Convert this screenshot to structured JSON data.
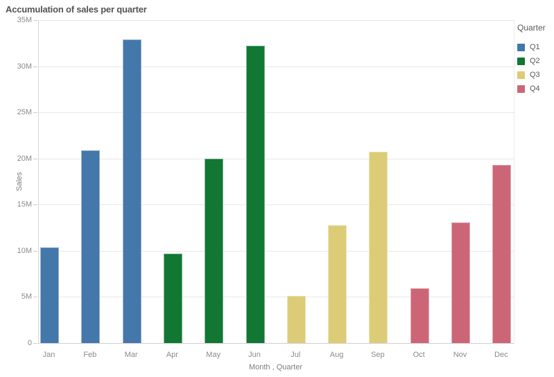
{
  "title": "Accumulation of sales per quarter",
  "colors": {
    "background": "#ffffff",
    "title_text": "#545454",
    "axis_tick_text": "#8a8a8a",
    "axis_title_text": "#7d7d7d",
    "gridline": "#e8e8e8",
    "axis_line": "#d6d6d6",
    "q1_blue": "#4477aa",
    "q2_green": "#117733",
    "q3_yellow": "#ddcc77",
    "q4_red": "#cc6677"
  },
  "legend": {
    "title": "Quarter",
    "items": [
      {
        "label": "Q1",
        "color": "#4477aa"
      },
      {
        "label": "Q2",
        "color": "#117733"
      },
      {
        "label": "Q3",
        "color": "#ddcc77"
      },
      {
        "label": "Q4",
        "color": "#cc6677"
      }
    ]
  },
  "chart_data": {
    "type": "bar",
    "title": "Accumulation of sales per quarter",
    "xlabel": "Month , Quarter",
    "ylabel": "Sales",
    "unit": "millions",
    "ylim_m": [
      0,
      35
    ],
    "ytick_values_m": [
      0,
      5,
      10,
      15,
      20,
      25,
      30,
      35
    ],
    "ytick_labels": [
      "0",
      "5M",
      "10M",
      "15M",
      "20M",
      "25M",
      "30M",
      "35M"
    ],
    "grid": true,
    "legend_position": "right",
    "categories": [
      "Jan",
      "Feb",
      "Mar",
      "Apr",
      "May",
      "Jun",
      "Jul",
      "Aug",
      "Sep",
      "Oct",
      "Nov",
      "Dec"
    ],
    "quarters": [
      "Q1",
      "Q1",
      "Q1",
      "Q2",
      "Q2",
      "Q2",
      "Q3",
      "Q3",
      "Q3",
      "Q4",
      "Q4",
      "Q4"
    ],
    "values_m": [
      10.4,
      20.9,
      32.9,
      9.7,
      20.0,
      32.2,
      5.1,
      12.8,
      20.7,
      5.9,
      13.1,
      19.3
    ]
  }
}
